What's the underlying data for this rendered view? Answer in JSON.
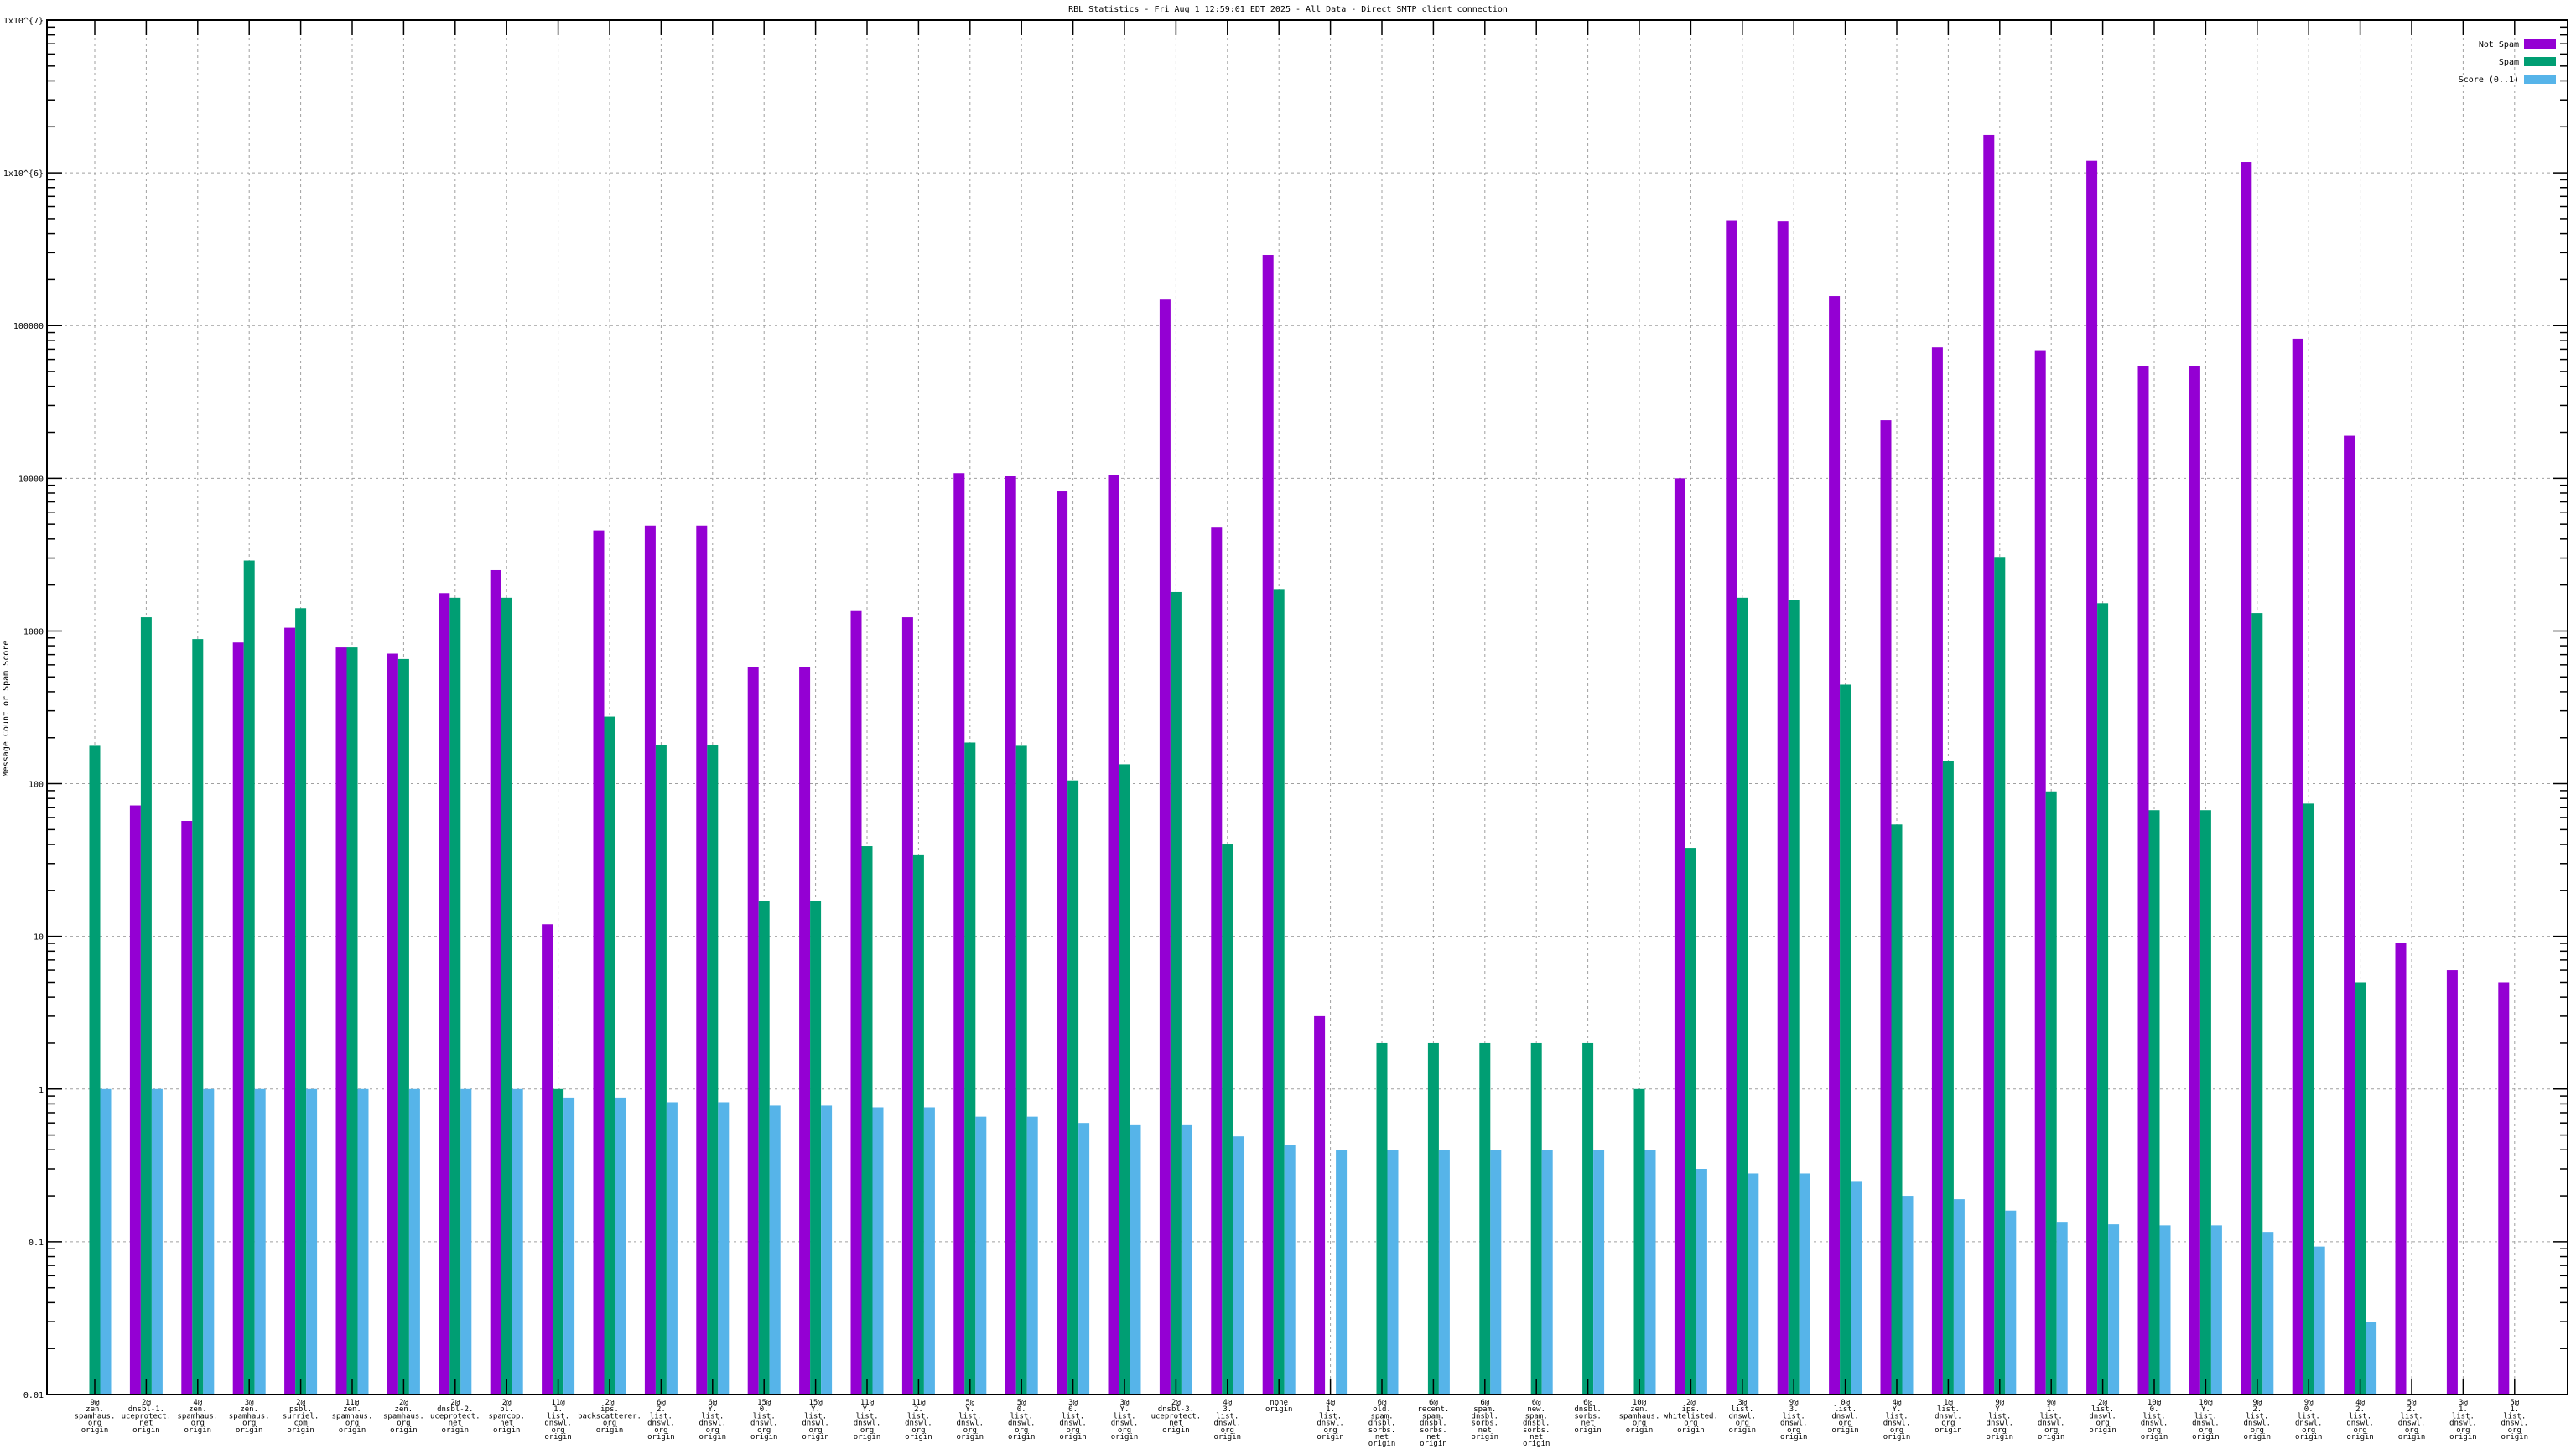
{
  "chart_data": {
    "type": "bar",
    "title": "RBL Statistics - Fri Aug  1 12:59:01 EDT 2025 - All Data - Direct SMTP client connection",
    "xlabel": "",
    "ylabel": "Message Count or Spam Score",
    "yscale": "log",
    "ylim": [
      0.01,
      10000000
    ],
    "yticks": [
      "0.01",
      "0.1",
      "1",
      "10",
      "100",
      "1000",
      "10000",
      "100000",
      "1x10^{6}",
      "1x10^{7}"
    ],
    "grid": true,
    "legend_position": "top-right",
    "colors": {
      "Not Spam": "#9400d3",
      "Spam": "#009e73",
      "Score (0..1)": "#56b4e9"
    },
    "categories": [
      [
        "9@",
        "zen.",
        "spamhaus.",
        "org",
        "origin"
      ],
      [
        "2@",
        "dnsbl-1.",
        "uceprotect.",
        "net",
        "origin"
      ],
      [
        "4@",
        "zen.",
        "spamhaus.",
        "org",
        "origin"
      ],
      [
        "3@",
        "zen.",
        "spamhaus.",
        "org",
        "origin"
      ],
      [
        "2@",
        "psbl.",
        "surriel.",
        "com",
        "origin"
      ],
      [
        "11@",
        "zen.",
        "spamhaus.",
        "org",
        "origin"
      ],
      [
        "2@",
        "zen.",
        "spamhaus.",
        "org",
        "origin"
      ],
      [
        "2@",
        "dnsbl-2.",
        "uceprotect.",
        "net",
        "origin"
      ],
      [
        "2@",
        "bl.",
        "spamcop.",
        "net",
        "origin"
      ],
      [
        "11@",
        "1.",
        "list.",
        "dnswl.",
        "org",
        "origin"
      ],
      [
        "2@",
        "ips.",
        "backscatterer.",
        "org",
        "origin"
      ],
      [
        "6@",
        "2.",
        "list.",
        "dnswl.",
        "org",
        "origin"
      ],
      [
        "6@",
        "Y.",
        "list.",
        "dnswl.",
        "org",
        "origin"
      ],
      [
        "15@",
        "0.",
        "list.",
        "dnswl.",
        "org",
        "origin"
      ],
      [
        "15@",
        "Y.",
        "list.",
        "dnswl.",
        "org",
        "origin"
      ],
      [
        "11@",
        "Y.",
        "list.",
        "dnswl.",
        "org",
        "origin"
      ],
      [
        "11@",
        "2.",
        "list.",
        "dnswl.",
        "org",
        "origin"
      ],
      [
        "5@",
        "Y.",
        "list.",
        "dnswl.",
        "org",
        "origin"
      ],
      [
        "5@",
        "0.",
        "list.",
        "dnswl.",
        "org",
        "origin"
      ],
      [
        "3@",
        "0.",
        "list.",
        "dnswl.",
        "org",
        "origin"
      ],
      [
        "3@",
        "Y.",
        "list.",
        "dnswl.",
        "org",
        "origin"
      ],
      [
        "2@",
        "dnsbl-3.",
        "uceprotect.",
        "net",
        "origin"
      ],
      [
        "4@",
        "3.",
        "list.",
        "dnswl.",
        "org",
        "origin"
      ],
      [
        "none",
        "origin"
      ],
      [
        "4@",
        "1.",
        "list.",
        "dnswl.",
        "org",
        "origin"
      ],
      [
        "6@",
        "old.",
        "spam.",
        "dnsbl.",
        "sorbs.",
        "net",
        "origin"
      ],
      [
        "6@",
        "recent.",
        "spam.",
        "dnsbl.",
        "sorbs.",
        "net",
        "origin"
      ],
      [
        "6@",
        "spam.",
        "dnsbl.",
        "sorbs.",
        "net",
        "origin"
      ],
      [
        "6@",
        "new.",
        "spam.",
        "dnsbl.",
        "sorbs.",
        "net",
        "origin"
      ],
      [
        "6@",
        "dnsbl.",
        "sorbs.",
        "net",
        "origin"
      ],
      [
        "10@",
        "zen.",
        "spamhaus.",
        "org",
        "origin"
      ],
      [
        "2@",
        "ips.",
        "whitelisted.",
        "org",
        "origin"
      ],
      [
        "3@",
        "list.",
        "dnswl.",
        "org",
        "origin"
      ],
      [
        "9@",
        "3.",
        "list.",
        "dnswl.",
        "org",
        "origin"
      ],
      [
        "0@",
        "list.",
        "dnswl.",
        "org",
        "origin"
      ],
      [
        "4@",
        "Y.",
        "list.",
        "dnswl.",
        "org",
        "origin"
      ],
      [
        "1@",
        "list.",
        "dnswl.",
        "org",
        "origin"
      ],
      [
        "9@",
        "Y.",
        "list.",
        "dnswl.",
        "org",
        "origin"
      ],
      [
        "9@",
        "1.",
        "list.",
        "dnswl.",
        "org",
        "origin"
      ],
      [
        "2@",
        "list.",
        "dnswl.",
        "org",
        "origin"
      ],
      [
        "10@",
        "0.",
        "list.",
        "dnswl.",
        "org",
        "origin"
      ],
      [
        "10@",
        "Y.",
        "list.",
        "dnswl.",
        "org",
        "origin"
      ],
      [
        "9@",
        "2.",
        "list.",
        "dnswl.",
        "org",
        "origin"
      ],
      [
        "9@",
        "0.",
        "list.",
        "dnswl.",
        "org",
        "origin"
      ],
      [
        "4@",
        "2.",
        "list.",
        "dnswl.",
        "org",
        "origin"
      ],
      [
        "5@",
        "2.",
        "list.",
        "dnswl.",
        "org",
        "origin"
      ],
      [
        "3@",
        "1.",
        "list.",
        "dnswl.",
        "org",
        "origin"
      ],
      [
        "5@",
        "1.",
        "list.",
        "dnswl.",
        "org",
        "origin"
      ]
    ],
    "series": [
      {
        "name": "Not Spam",
        "values": [
          null,
          72,
          57,
          840,
          1050,
          780,
          710,
          1770,
          2500,
          12,
          4550,
          4900,
          4900,
          580,
          580,
          1350,
          1230,
          10800,
          10300,
          8200,
          10500,
          148000,
          4750,
          290000,
          3,
          null,
          null,
          null,
          null,
          null,
          null,
          10000,
          490000,
          480000,
          156000,
          24000,
          72000,
          1770000,
          69000,
          1200000,
          54000,
          54000,
          1180000,
          82000,
          19000,
          9,
          6,
          5
        ]
      },
      {
        "name": "Spam",
        "values": [
          177,
          1230,
          885,
          2890,
          1410,
          780,
          655,
          1650,
          1650,
          1,
          275,
          180,
          180,
          17,
          17,
          39,
          34,
          186,
          177,
          105,
          134,
          1800,
          40,
          1860,
          null,
          2,
          2,
          2,
          2,
          2,
          1,
          38,
          1650,
          1600,
          445,
          54,
          141,
          3050,
          89,
          1520,
          67,
          67,
          1310,
          74,
          5,
          null,
          null,
          null
        ]
      },
      {
        "name": "Score (0..1)",
        "values": [
          1,
          1,
          1,
          1,
          1,
          1,
          1,
          1,
          1,
          0.88,
          0.88,
          0.82,
          0.82,
          0.78,
          0.78,
          0.76,
          0.76,
          0.66,
          0.66,
          0.6,
          0.58,
          0.58,
          0.49,
          0.43,
          0.4,
          0.4,
          0.4,
          0.4,
          0.4,
          0.4,
          0.4,
          0.3,
          0.28,
          0.28,
          0.25,
          0.2,
          0.19,
          0.16,
          0.135,
          0.13,
          0.128,
          0.128,
          0.116,
          0.093,
          0.03,
          null,
          null,
          null
        ]
      }
    ]
  }
}
